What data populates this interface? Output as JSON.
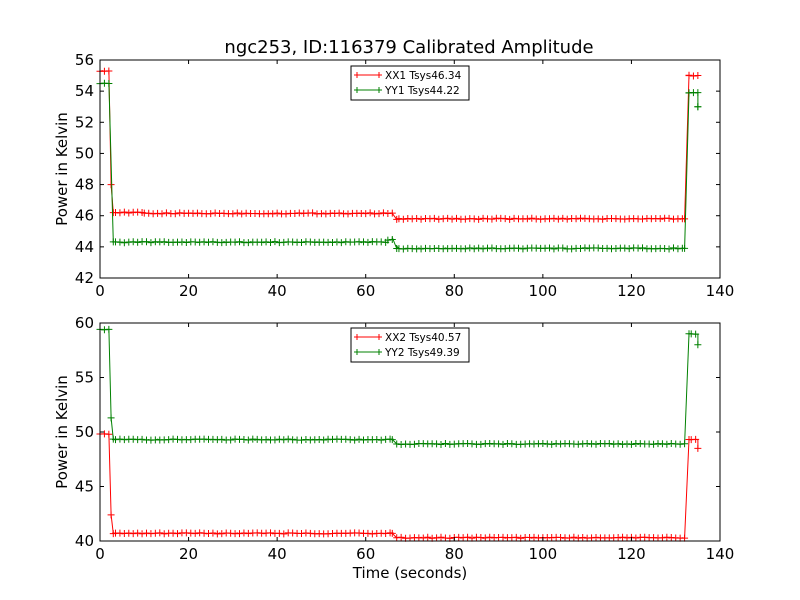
{
  "chart_data": [
    {
      "type": "line",
      "title": "ngc253, ID:116379 Calibrated Amplitude",
      "xlabel": "",
      "ylabel": "Power in Kelvin",
      "xlim": [
        0,
        140
      ],
      "ylim": [
        42,
        56
      ],
      "xticks": [
        "0",
        "20",
        "40",
        "60",
        "80",
        "100",
        "120",
        "140"
      ],
      "yticks": [
        "42",
        "44",
        "46",
        "48",
        "50",
        "52",
        "54",
        "56"
      ],
      "legend_position": "top-center",
      "grid": false,
      "series": [
        {
          "name": "XX1 Tsys46.34",
          "color": "#ff0000",
          "segments": [
            [
              0,
              2,
              55.3
            ],
            [
              3,
              10,
              46.2
            ],
            [
              10,
              66,
              46.15
            ],
            [
              67,
              132,
              45.8
            ],
            [
              133,
              135,
              55.0
            ]
          ],
          "transitions": [
            [
              2,
              55.3,
              3,
              46.2
            ],
            [
              2.5,
              48.0,
              2.5,
              48.0
            ],
            [
              66,
              46.15,
              67,
              45.8
            ],
            [
              132,
              45.8,
              133,
              55.0
            ]
          ]
        },
        {
          "name": "YY1 Tsys44.22",
          "color": "#008000",
          "segments": [
            [
              0,
              2,
              54.5
            ],
            [
              3,
              65,
              44.3
            ],
            [
              65,
              66,
              44.45
            ],
            [
              67,
              132,
              43.9
            ],
            [
              133,
              135,
              53.9
            ]
          ],
          "transitions": [
            [
              2,
              54.5,
              3,
              44.3
            ],
            [
              66,
              44.6,
              67,
              44.05
            ],
            [
              132,
              43.9,
              133,
              53.9
            ],
            [
              135,
              53.0,
              135,
              53.0
            ]
          ]
        }
      ]
    },
    {
      "type": "line",
      "title": "",
      "xlabel": "Time (seconds)",
      "ylabel": "Power in Kelvin",
      "xlim": [
        0,
        140
      ],
      "ylim": [
        40,
        60
      ],
      "xticks": [
        "0",
        "20",
        "40",
        "60",
        "80",
        "100",
        "120",
        "140"
      ],
      "yticks": [
        "40",
        "45",
        "50",
        "55",
        "60"
      ],
      "legend_position": "top-center",
      "grid": false,
      "series": [
        {
          "name": "XX2 Tsys40.57",
          "color": "#ff0000",
          "segments": [
            [
              0,
              2,
              49.8
            ],
            [
              3,
              66,
              40.7
            ],
            [
              67,
              132,
              40.3
            ],
            [
              133,
              135,
              49.3
            ]
          ],
          "transitions": [
            [
              2,
              49.8,
              3,
              40.7
            ],
            [
              2.5,
              42.4,
              2.5,
              42.4
            ],
            [
              66,
              40.7,
              67,
              40.3
            ],
            [
              132,
              40.3,
              133,
              49.3
            ],
            [
              135,
              48.5,
              135,
              48.5
            ]
          ]
        },
        {
          "name": "YY2 Tsys49.39",
          "color": "#008000",
          "segments": [
            [
              0,
              2,
              59.4
            ],
            [
              3,
              66,
              49.3
            ],
            [
              67,
              132,
              48.9
            ],
            [
              133,
              135,
              59.0
            ]
          ],
          "transitions": [
            [
              2,
              59.4,
              3,
              49.3
            ],
            [
              2.5,
              51.3,
              2.5,
              51.3
            ],
            [
              66,
              49.3,
              67,
              48.9
            ],
            [
              132,
              48.9,
              133,
              59.0
            ],
            [
              135,
              58.0,
              135,
              58.0
            ]
          ]
        }
      ]
    }
  ]
}
